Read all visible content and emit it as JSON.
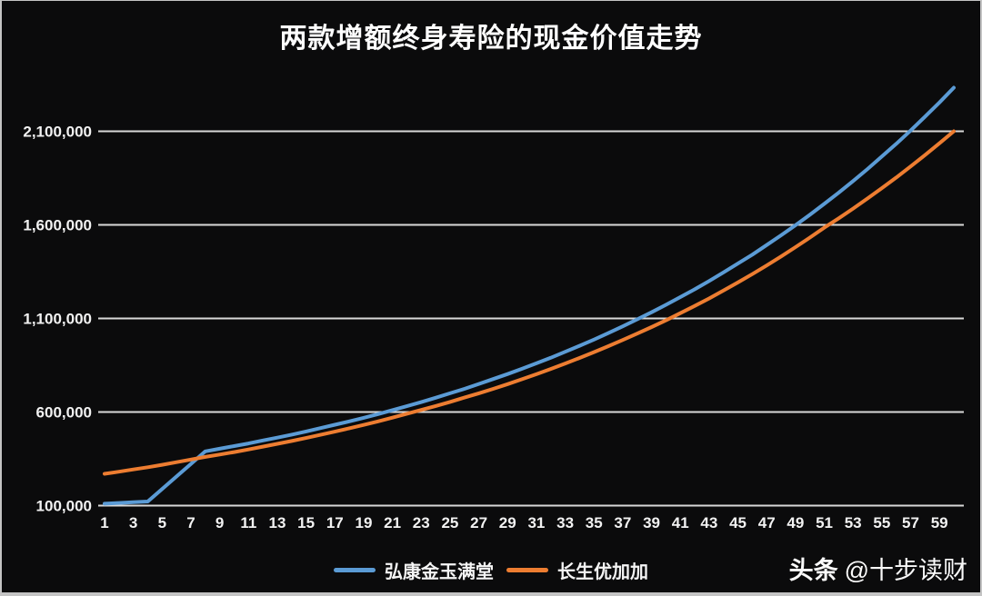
{
  "page": {
    "watermark": {
      "brand": "头条",
      "handle": "@十步读财"
    }
  },
  "chart_data": {
    "type": "line",
    "title": "两款增额终身寿险的现金价值走势",
    "xlabel": "",
    "ylabel": "",
    "grid": "horizontal",
    "grid_color": "#d9d9d9",
    "tick_color": "#f2f2f2",
    "background": "#0b0b0c",
    "legend_position": "bottom",
    "x": [
      1,
      2,
      3,
      4,
      5,
      6,
      7,
      8,
      9,
      10,
      11,
      12,
      13,
      14,
      15,
      16,
      17,
      18,
      19,
      20,
      21,
      22,
      23,
      24,
      25,
      26,
      27,
      28,
      29,
      30,
      31,
      32,
      33,
      34,
      35,
      36,
      37,
      38,
      39,
      40,
      41,
      42,
      43,
      44,
      45,
      46,
      47,
      48,
      49,
      50,
      51,
      52,
      53,
      54,
      55,
      56,
      57,
      58,
      59,
      60
    ],
    "x_ticks": [
      1,
      3,
      5,
      7,
      9,
      11,
      13,
      15,
      17,
      19,
      21,
      23,
      25,
      27,
      29,
      31,
      33,
      35,
      37,
      39,
      41,
      43,
      45,
      47,
      49,
      51,
      53,
      55,
      57,
      59
    ],
    "y_axis": {
      "min": 100000,
      "max": 2100000,
      "step": 500000,
      "tick_labels": [
        "100,000",
        "600,000",
        "1,100,000",
        "1,600,000",
        "2,100,000"
      ]
    },
    "ylim": [
      100000,
      2350000
    ],
    "series": [
      {
        "name": "弘康金玉满堂",
        "color": "#5B9BD5",
        "values": [
          110000,
          114000,
          118000,
          122000,
          189000,
          256000,
          323000,
          390000,
          404000,
          418000,
          432000,
          448000,
          463000,
          479000,
          496000,
          514000,
          532000,
          550000,
          569000,
          589000,
          610000,
          631000,
          653000,
          676000,
          700000,
          724000,
          750000,
          776000,
          803000,
          831000,
          860000,
          890000,
          922000,
          954000,
          987000,
          1022000,
          1058000,
          1095000,
          1133000,
          1173000,
          1214000,
          1256000,
          1300000,
          1346000,
          1393000,
          1441000,
          1492000,
          1544000,
          1598000,
          1654000,
          1712000,
          1772000,
          1834000,
          1898000,
          1965000,
          2033000,
          2104000,
          2178000,
          2254000,
          2333000
        ]
      },
      {
        "name": "长生优加加",
        "color": "#ED7D31",
        "values": [
          270000,
          281000,
          293000,
          305000,
          318000,
          332000,
          346000,
          360000,
          373000,
          386000,
          400000,
          415000,
          430000,
          445000,
          461000,
          478000,
          495000,
          513000,
          531000,
          550000,
          570000,
          591000,
          611000,
          632000,
          654000,
          677000,
          700000,
          724000,
          749000,
          775000,
          802000,
          830000,
          859000,
          889000,
          920000,
          952000,
          985000,
          1019000,
          1054000,
          1090000,
          1128000,
          1167000,
          1207000,
          1249000,
          1292000,
          1337000,
          1383000,
          1431000,
          1481000,
          1532000,
          1585000,
          1635000,
          1687000,
          1741000,
          1796000,
          1853000,
          1912000,
          1973000,
          2036000,
          2100000
        ]
      }
    ]
  }
}
